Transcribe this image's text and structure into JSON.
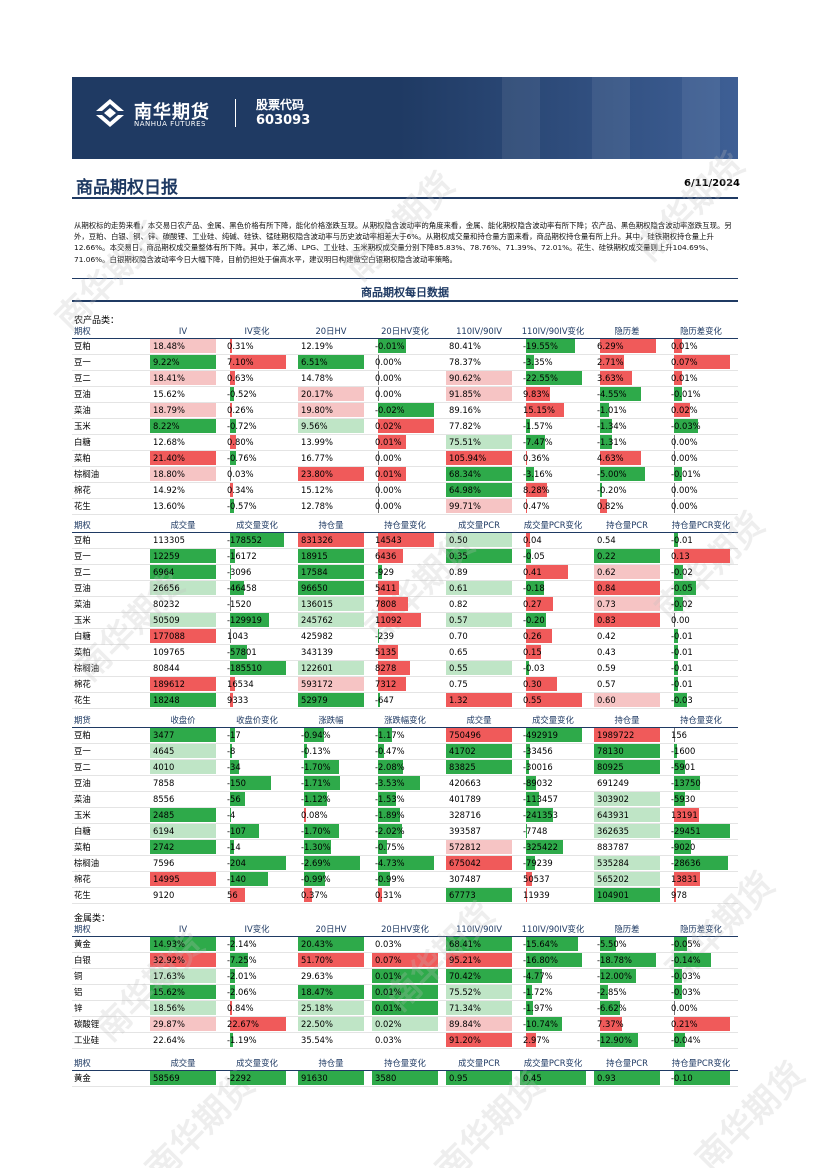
{
  "header": {
    "logo_cn": "南华期货",
    "logo_en": "NANHUA FUTURES",
    "stock_label": "股票代码",
    "stock_code": "603093",
    "title": "商品期权日报",
    "date": "6/11/2024"
  },
  "summary": "从期权标的走势来看，本交易日农产品、金属、黑色价格有所下降，能化价格涨跌互现。从期权隐含波动率的角度来看，金属、能化期权隐含波动率有所下降；农产品、黑色期权隐含波动率涨跌互现。另外，豆粕、白银、铜、锌、碳酸锂、工业硅、纯碱、硅铁、锰硅期权隐含波动率与历史波动率相差大于6%。从期权成交量和持仓量方面来看，商品期权持仓量有所上升。其中，硅铁期权持仓量上升12.66%。本交易日，商品期权成交量整体有所下降。其中，苯乙烯、LPG、工业硅、玉米期权成交量分别下降85.83%、78.76%、71.39%、72.01%。花生、硅铁期权成交量则上升104.69%、71.06%。白银期权隐含波动率今日大幅下降，目前仍担处于偏高水平，建议明日构建做空白银期权隐含波动率策略。",
  "section_title": "商品期权每日数据",
  "watermark": "南华期货",
  "colors": {
    "red": "#f05a5a",
    "green": "#2eaa4a",
    "pink": "#f6c4c4",
    "lightgreen": "#bfe5c6",
    "navy": "#1f3a63"
  },
  "categories": {
    "ag": "农产品类：",
    "metal": "金属类："
  },
  "tables": [
    {
      "headers": [
        "期权",
        "IV",
        "IV变化",
        "20日HV",
        "20日HV变化",
        "110IV/90IV",
        "110IV/90IV变化",
        "隐历差",
        "隐历差变化"
      ],
      "rows": [
        [
          "豆粕",
          "18.48%",
          "0.31%",
          "12.19%",
          "-0.01%",
          "80.41%",
          "-19.55%",
          "6.29%",
          "0.01%"
        ],
        [
          "豆一",
          "9.22%",
          "7.10%",
          "6.51%",
          "0.00%",
          "78.37%",
          "-3.35%",
          "2.71%",
          "0.07%"
        ],
        [
          "豆二",
          "18.41%",
          "0.63%",
          "14.78%",
          "0.00%",
          "90.62%",
          "-22.55%",
          "3.63%",
          "0.01%"
        ],
        [
          "豆油",
          "15.62%",
          "-0.52%",
          "20.17%",
          "0.00%",
          "91.85%",
          "9.83%",
          "-4.55%",
          "-0.01%"
        ],
        [
          "菜油",
          "18.79%",
          "0.26%",
          "19.80%",
          "-0.02%",
          "89.16%",
          "15.15%",
          "-1.01%",
          "0.02%"
        ],
        [
          "玉米",
          "8.22%",
          "-0.72%",
          "9.56%",
          "0.02%",
          "77.82%",
          "-1.57%",
          "-1.34%",
          "-0.03%"
        ],
        [
          "白糖",
          "12.68%",
          "0.80%",
          "13.99%",
          "0.01%",
          "75.51%",
          "-7.47%",
          "-1.31%",
          "0.00%"
        ],
        [
          "菜粕",
          "21.40%",
          "-0.76%",
          "16.77%",
          "0.00%",
          "105.94%",
          "0.36%",
          "4.63%",
          "0.00%"
        ],
        [
          "棕榈油",
          "18.80%",
          "0.03%",
          "23.80%",
          "0.01%",
          "68.34%",
          "-3.16%",
          "-5.00%",
          "-0.01%"
        ],
        [
          "棉花",
          "14.92%",
          "0.34%",
          "15.12%",
          "0.00%",
          "64.98%",
          "8.28%",
          "-0.20%",
          "0.00%"
        ],
        [
          "花生",
          "13.60%",
          "-0.57%",
          "12.78%",
          "0.00%",
          "99.71%",
          "0.47%",
          "0.82%",
          "0.00%"
        ]
      ]
    },
    {
      "headers": [
        "期权",
        "成交量",
        "成交量变化",
        "持仓量",
        "持仓量变化",
        "成交量PCR",
        "成交量PCR变化",
        "持仓量PCR",
        "持仓量PCR变化"
      ],
      "rows": [
        [
          "豆粕",
          "113305",
          "-178552",
          "831326",
          "14543",
          "0.50",
          "0.04",
          "0.54",
          "-0.01"
        ],
        [
          "豆一",
          "12259",
          "-16172",
          "18915",
          "6436",
          "0.35",
          "-0.05",
          "0.22",
          "0.13"
        ],
        [
          "豆二",
          "6964",
          "-3096",
          "17584",
          "-929",
          "0.89",
          "0.41",
          "0.62",
          "-0.02"
        ],
        [
          "豆油",
          "26656",
          "-46458",
          "96650",
          "5411",
          "0.61",
          "-0.18",
          "0.84",
          "-0.05"
        ],
        [
          "菜油",
          "80232",
          "-1520",
          "136015",
          "7808",
          "0.82",
          "0.27",
          "0.73",
          "-0.02"
        ],
        [
          "玉米",
          "50509",
          "-129919",
          "245762",
          "11092",
          "0.57",
          "-0.20",
          "0.83",
          "0.00"
        ],
        [
          "白糖",
          "177088",
          "1043",
          "425982",
          "-239",
          "0.70",
          "0.26",
          "0.42",
          "-0.01"
        ],
        [
          "菜粕",
          "109765",
          "-57801",
          "343139",
          "5135",
          "0.65",
          "0.15",
          "0.43",
          "-0.01"
        ],
        [
          "棕榈油",
          "80844",
          "-185510",
          "122601",
          "8278",
          "0.55",
          "-0.03",
          "0.59",
          "-0.01"
        ],
        [
          "棉花",
          "189612",
          "16534",
          "593172",
          "7312",
          "0.75",
          "0.30",
          "0.57",
          "-0.01"
        ],
        [
          "花生",
          "18248",
          "9333",
          "52979",
          "-647",
          "1.32",
          "0.55",
          "0.60",
          "-0.03"
        ]
      ]
    },
    {
      "headers": [
        "期货",
        "收盘价",
        "收盘价变化",
        "涨跌幅",
        "涨跌幅变化",
        "成交量",
        "成交量变化",
        "持仓量",
        "持仓量变化"
      ],
      "rows": [
        [
          "豆粕",
          "3477",
          "-17",
          "-0.94%",
          "-1.17%",
          "750496",
          "-492919",
          "1989722",
          "156"
        ],
        [
          "豆一",
          "4645",
          "-8",
          "-0.13%",
          "-0.47%",
          "41702",
          "-33456",
          "78130",
          "-1600"
        ],
        [
          "豆二",
          "4010",
          "-34",
          "-1.70%",
          "-2.08%",
          "83825",
          "-30016",
          "80925",
          "-5901"
        ],
        [
          "豆油",
          "7858",
          "-150",
          "-1.71%",
          "-3.53%",
          "420663",
          "-89032",
          "691249",
          "-13750"
        ],
        [
          "菜油",
          "8556",
          "-56",
          "-1.12%",
          "-1.53%",
          "401789",
          "-113457",
          "303902",
          "-5930"
        ],
        [
          "玉米",
          "2485",
          "-4",
          "0.08%",
          "-1.89%",
          "328716",
          "-241353",
          "643931",
          "13191"
        ],
        [
          "白糖",
          "6194",
          "-107",
          "-1.70%",
          "-2.02%",
          "393587",
          "-7748",
          "362635",
          "-29451"
        ],
        [
          "菜粕",
          "2742",
          "-14",
          "-1.30%",
          "-0.75%",
          "572812",
          "-325422",
          "883787",
          "-9020"
        ],
        [
          "棕榈油",
          "7596",
          "-204",
          "-2.69%",
          "-4.73%",
          "675042",
          "-79239",
          "535284",
          "-28636"
        ],
        [
          "棉花",
          "14995",
          "-140",
          "-0.99%",
          "-0.99%",
          "307487",
          "50537",
          "565202",
          "13831"
        ],
        [
          "花生",
          "9120",
          "56",
          "0.37%",
          "0.31%",
          "67773",
          "11939",
          "104901",
          "978"
        ]
      ]
    },
    {
      "headers": [
        "期权",
        "IV",
        "IV变化",
        "20日HV",
        "20日HV变化",
        "110IV/90IV",
        "110IV/90IV变化",
        "隐历差",
        "隐历差变化"
      ],
      "rows": [
        [
          "黄金",
          "14.93%",
          "-2.14%",
          "20.43%",
          "0.03%",
          "68.41%",
          "-15.64%",
          "-5.50%",
          "-0.05%"
        ],
        [
          "白银",
          "32.92%",
          "-7.25%",
          "51.70%",
          "0.07%",
          "95.21%",
          "-16.80%",
          "-18.78%",
          "-0.14%"
        ],
        [
          "铜",
          "17.63%",
          "-2.01%",
          "29.63%",
          "0.01%",
          "70.42%",
          "-4.77%",
          "-12.00%",
          "-0.03%"
        ],
        [
          "铝",
          "15.62%",
          "-2.06%",
          "18.47%",
          "0.01%",
          "75.52%",
          "-1.72%",
          "-2.85%",
          "-0.03%"
        ],
        [
          "锌",
          "18.56%",
          "0.84%",
          "25.18%",
          "0.01%",
          "71.34%",
          "-1.97%",
          "-6.62%",
          "0.00%"
        ],
        [
          "碳酸锂",
          "29.87%",
          "22.67%",
          "22.50%",
          "0.02%",
          "89.84%",
          "-10.74%",
          "7.37%",
          "0.21%"
        ],
        [
          "工业硅",
          "22.64%",
          "-1.19%",
          "35.54%",
          "0.03%",
          "91.20%",
          "2.97%",
          "-12.90%",
          "-0.04%"
        ]
      ]
    },
    {
      "headers": [
        "期权",
        "成交量",
        "成交量变化",
        "持仓量",
        "持仓量变化",
        "成交量PCR",
        "成交量PCR变化",
        "持仓量PCR",
        "持仓量PCR变化"
      ],
      "rows": [
        [
          "黄金",
          "58569",
          "-2292",
          "91630",
          "3580",
          "0.95",
          "0.45",
          "0.93",
          "-0.10"
        ]
      ]
    }
  ]
}
